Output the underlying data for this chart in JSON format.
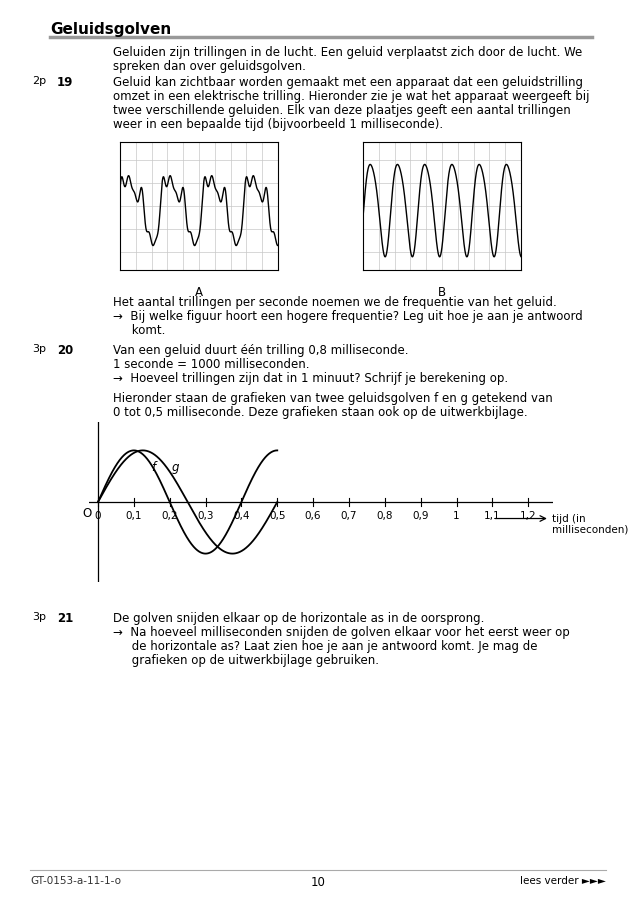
{
  "title": "Geluidsgolven",
  "page_number": "10",
  "footer_left": "GT-0153-a-11-1-o",
  "footer_right": "lees verder ►►►",
  "intro_text": "Geluiden zijn trillingen in de lucht. Een geluid verplaatst zich door de lucht. We\nspreken dan over geluidsgolven.",
  "q19_points": "2p",
  "q19_number": "19",
  "q19_text": "Geluid kan zichtbaar worden gemaakt met een apparaat dat een geluidstrilling\nomzet in een elektrische trilling. Hieronder zie je wat het apparaat weergeeft bij\ntwee verschillende geluiden. Elk van deze plaatjes geeft een aantal trillingen\nweer in een bepaalde tijd (bijvoorbeeld 1 milliseconde).",
  "q19_arrow_text1": "→  Bij welke figuur hoort een hogere frequentie? Leg uit hoe je aan je antwoord",
  "q19_arrow_text2": "     komt.",
  "freq_text": "Het aantal trillingen per seconde noemen we de frequentie van het geluid.",
  "q20_points": "3p",
  "q20_number": "20",
  "q20_text1": "Van een geluid duurt één trilling 0,8 milliseconde.",
  "q20_text2": "1 seconde = 1000 milliseconden.",
  "q20_arrow": "→  Hoeveel trillingen zijn dat in 1 minuut? Schrijf je berekening op.",
  "q20_graph_text1": "Hieronder staan de grafieken van twee geluidsgolven f en g getekend van",
  "q20_graph_text2": "0 tot 0,5 milliseconde. Deze grafieken staan ook op de uitwerkbijlage.",
  "q21_points": "3p",
  "q21_number": "21",
  "q21_text": "De golven snijden elkaar op de horizontale as in de oorsprong.",
  "q21_arrow1": "→  Na hoeveel milliseconden snijden de golven elkaar voor het eerst weer op",
  "q21_arrow2": "     de horizontale as? Laat zien hoe je aan je antwoord komt. Je mag de",
  "q21_arrow3": "     grafieken op de uitwerkbijlage gebruiken.",
  "graph_xtick_labels": [
    "0",
    "0,1",
    "0,2",
    "0,3",
    "0,4",
    "0,5",
    "0,6",
    "0,7",
    "0,8",
    "0,9",
    "1",
    "1,1",
    "1,2"
  ],
  "graph_xticks": [
    0,
    0.1,
    0.2,
    0.3,
    0.4,
    0.5,
    0.6,
    0.7,
    0.8,
    0.9,
    1.0,
    1.1,
    1.2
  ],
  "label_A": "A",
  "label_B": "B",
  "background_color": "#ffffff"
}
